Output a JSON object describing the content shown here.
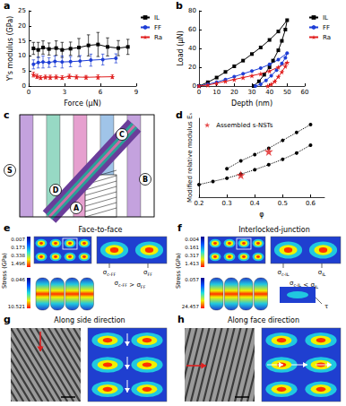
{
  "chart_data": [
    {
      "panel": "a",
      "type": "line",
      "x_label": "Force (μN)",
      "y_label": "Y's modulus (GPa)",
      "xlim": [
        0,
        9
      ],
      "xticks": [
        0,
        3,
        6,
        9
      ],
      "ylim": [
        0,
        25
      ],
      "yticks": [
        0,
        5,
        10,
        15,
        20,
        25
      ],
      "grid": false,
      "legend": "right",
      "series": [
        {
          "name": "IL",
          "color": "#000000",
          "marker": "square",
          "line_style": "solid",
          "x": [
            0.4,
            0.8,
            1.2,
            1.7,
            2.3,
            2.8,
            3.5,
            4.2,
            5.0,
            5.8,
            6.6,
            7.5,
            8.3
          ],
          "values": [
            12.5,
            12.0,
            12.8,
            12.3,
            12.6,
            12.0,
            12.4,
            12.8,
            13.5,
            13.8,
            13.0,
            12.6,
            13.0
          ],
          "errors": [
            2.0,
            2.5,
            2.2,
            2.0,
            2.4,
            2.5,
            2.2,
            3.0,
            3.5,
            4.0,
            3.0,
            2.5,
            2.5
          ]
        },
        {
          "name": "FF",
          "color": "#1f3fd6",
          "marker": "circle",
          "line_style": "solid",
          "x": [
            0.4,
            0.8,
            1.2,
            1.7,
            2.2,
            2.8,
            3.5,
            4.3,
            5.2,
            6.2,
            7.3
          ],
          "values": [
            7.2,
            7.8,
            8.0,
            7.8,
            8.2,
            8.0,
            8.1,
            8.3,
            8.6,
            8.8,
            9.2
          ],
          "errors": [
            1.5,
            1.8,
            2.0,
            1.6,
            1.8,
            2.0,
            1.7,
            1.8,
            2.0,
            1.8,
            1.5
          ]
        },
        {
          "name": "Ra",
          "color": "#e02020",
          "marker": "star",
          "line_style": "solid",
          "x": [
            0.4,
            0.7,
            1.0,
            1.4,
            1.8,
            2.3,
            2.8,
            3.4,
            4.0,
            4.8,
            5.8,
            7.0
          ],
          "values": [
            3.8,
            3.2,
            2.8,
            3.0,
            2.9,
            3.0,
            2.8,
            3.2,
            3.0,
            2.9,
            3.0,
            3.1
          ],
          "errors": [
            0.8,
            0.7,
            0.6,
            0.6,
            0.7,
            0.6,
            0.6,
            0.7,
            0.6,
            0.6,
            0.7,
            0.6
          ]
        }
      ]
    },
    {
      "panel": "b",
      "type": "line",
      "x_label": "Depth (nm)",
      "y_label": "Load (μN)",
      "xlim": [
        0,
        60
      ],
      "xticks": [
        0,
        10,
        20,
        30,
        40,
        50,
        60
      ],
      "ylim": [
        0,
        80
      ],
      "yticks": [
        0,
        20,
        40,
        60,
        80
      ],
      "grid": false,
      "legend": "right",
      "series": [
        {
          "name": "IL",
          "color": "#000000",
          "marker": "square",
          "line_style": "solid",
          "x": [
            0,
            5,
            10,
            15,
            20,
            25,
            30,
            35,
            40,
            45,
            50,
            49,
            47,
            45,
            42,
            40,
            37,
            34,
            31
          ],
          "values": [
            0,
            4,
            9,
            15,
            21,
            27,
            34,
            41,
            49,
            58,
            70,
            60,
            48,
            38,
            27,
            20,
            12,
            5,
            0
          ]
        },
        {
          "name": "FF",
          "color": "#1f3fd6",
          "marker": "circle",
          "line_style": "solid",
          "x": [
            0,
            5,
            10,
            15,
            20,
            25,
            30,
            35,
            40,
            45,
            50,
            49,
            47,
            44,
            41,
            38,
            35,
            32
          ],
          "values": [
            0,
            2,
            4,
            7,
            10,
            13,
            16,
            19,
            23,
            28,
            35,
            30,
            24,
            17,
            11,
            6,
            2,
            0
          ]
        },
        {
          "name": "Ra",
          "color": "#e02020",
          "marker": "star",
          "line_style": "solid",
          "x": [
            0,
            5,
            10,
            15,
            20,
            25,
            30,
            35,
            40,
            45,
            50,
            49,
            47,
            45,
            43,
            41,
            39
          ],
          "values": [
            0,
            1,
            3,
            5,
            7,
            9,
            11,
            13,
            16,
            20,
            25,
            21,
            15,
            10,
            5,
            2,
            0
          ]
        }
      ]
    },
    {
      "panel": "d",
      "type": "line",
      "x_label": "φ",
      "y_label": "Modified relative modulus Eₛ",
      "xlim": [
        0.2,
        0.65
      ],
      "xticks": [
        0.2,
        0.3,
        0.4,
        0.5,
        0.6
      ],
      "ylim": [
        0,
        25
      ],
      "tick_labels": "x",
      "grid": false,
      "legend": "upper left",
      "series": [
        {
          "type": "line",
          "color": "#000000",
          "marker": "circle",
          "line_style": "dotted",
          "x": [
            0.3,
            0.35,
            0.4,
            0.45,
            0.5,
            0.55,
            0.6
          ],
          "values": [
            9,
            11.5,
            13.5,
            15.5,
            18,
            20.5,
            23
          ]
        },
        {
          "type": "line",
          "color": "#000000",
          "marker": "circle",
          "line_style": "dotted",
          "x": [
            0.2,
            0.25,
            0.3,
            0.35,
            0.4,
            0.45,
            0.5,
            0.55,
            0.6
          ],
          "values": [
            4,
            5,
            6,
            7.3,
            8.7,
            10.3,
            12,
            14,
            16.5
          ]
        },
        {
          "type": "scatter",
          "name": "Assembled s-NSTs",
          "color": "#e02020",
          "marker": "star",
          "x": [
            0.35,
            0.45
          ],
          "values": [
            7.0,
            14.5
          ]
        }
      ]
    }
  ],
  "diagrams": [
    {
      "panel": "c",
      "labels": [
        "S",
        "C",
        "B",
        "D",
        "A"
      ]
    },
    {
      "panel": "e",
      "title": "Face-to-face",
      "colorbar_label": "Stress (GPa)",
      "colorbar_ticks": [
        0.007,
        0.173,
        0.338,
        1.496
      ],
      "colorbar2_ticks": [
        0.046,
        10.521
      ],
      "annotations": [
        "σc-FF",
        "σFF"
      ],
      "relation": "σc-FF > σFF"
    },
    {
      "panel": "f",
      "title": "Interlocked-junction",
      "colorbar_label": "Stress (GPa)",
      "colorbar_ticks": [
        0.004,
        0.161,
        0.317,
        1.413
      ],
      "colorbar2_ticks": [
        0.057,
        24.457
      ],
      "annotations": [
        "σc-IL",
        "σIL",
        "τ"
      ],
      "relation": "σc-IL < σIL"
    },
    {
      "panel": "g",
      "title": "Along side direction"
    },
    {
      "panel": "h",
      "title": "Along face direction"
    }
  ]
}
